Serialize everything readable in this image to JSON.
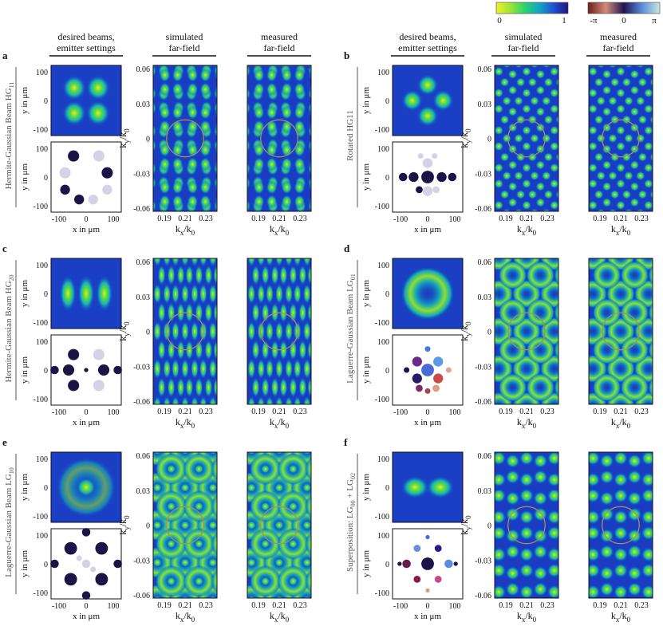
{
  "colorbars": {
    "amplitude": {
      "min": "0",
      "max": "1"
    },
    "phase": {
      "min": "-π",
      "mid": "0",
      "max": "π"
    }
  },
  "headers": {
    "desired_line1": "desired beams,",
    "desired_line2": "emitter settings",
    "simulated_line1": "simulated",
    "simulated_line2": "far-field",
    "measured_line1": "measured",
    "measured_line2": "far-field"
  },
  "axes": {
    "near_y_label": "y in μm",
    "near_x_label": "x in μm",
    "far_x_label": "k",
    "far_x_sub": "x",
    "far_y_label": "k",
    "far_y_sub": "y",
    "k0": "k",
    "k0_sub": "0",
    "near_ticks_y": [
      "100",
      "0",
      "-100"
    ],
    "near_ticks_x": [
      "-100",
      "0",
      "100"
    ],
    "far_ticks_y": [
      "0.06",
      "0.03",
      "0",
      "-0.03",
      "-0.06"
    ],
    "far_ticks_x": [
      "0.19",
      "0.21",
      "0.23"
    ]
  },
  "panels": [
    {
      "letter": "a",
      "title": "Hermite-Gaussian Beam HG",
      "sub": "11"
    },
    {
      "letter": "b",
      "title": "Rotated HG11",
      "sub": ""
    },
    {
      "letter": "c",
      "title": "Hermite-Gaussian Beam HG",
      "sub": "20"
    },
    {
      "letter": "d",
      "title": "Laguerre-Gaussian Beam LG",
      "sub": "01"
    },
    {
      "letter": "e",
      "title": "Laguerre-Gaussian Beam LG",
      "sub": "10"
    },
    {
      "letter": "f",
      "title": "Superposition: LG",
      "sub": "00",
      "extra": " + LG",
      "sub2": "02"
    }
  ]
}
